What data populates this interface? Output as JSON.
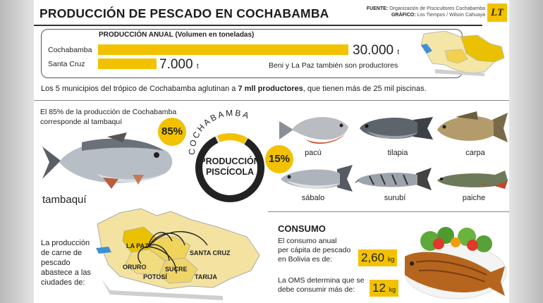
{
  "header": {
    "title": "PRODUCCIÓN DE PESCADO EN COCHABAMBA",
    "fuente_label": "FUENTE:",
    "fuente_value": "Organización de Piscicultores Cochabamba",
    "grafico_label": "GRÁFICO:",
    "grafico_value": "Los Tiempos / Wilson Cahuaya",
    "logo_text": "LT"
  },
  "production": {
    "heading": "PRODUCCIÓN ANUAL (Volumen en toneladas)",
    "rows": [
      {
        "label": "Cochabamba",
        "value": "30.000",
        "unit": "t",
        "amount": 30000
      },
      {
        "label": "Santa Cruz",
        "value": "7.000",
        "unit": "t",
        "amount": 7000
      }
    ],
    "note": "Beni y La Paz también son productores"
  },
  "sentence": {
    "before": "Los 5 municipios del trópico de Cochabamba aglutinan a ",
    "bold": "7 mll productores",
    "after": ", que tienen más de 25 mil piscinas."
  },
  "tambaqui": {
    "line1": "El 85% de la producción  de Cochabamba",
    "line2": "corresponde al tambaquí",
    "name": "tambaquí"
  },
  "ring": {
    "arc_text": "COCHABAMBA",
    "label_line1": "PRODUCCIÓN",
    "label_line2": "PISCÍCOLA",
    "pct_main": "85%",
    "pct_other": "15%",
    "share_main": 0.85,
    "share_other": 0.15
  },
  "fish": [
    {
      "name": "pacú"
    },
    {
      "name": "tilapia"
    },
    {
      "name": "carpa"
    },
    {
      "name": "sábalo"
    },
    {
      "name": "surubí"
    },
    {
      "name": "paiche"
    }
  ],
  "distribution": {
    "text_lines": [
      "La producción",
      "de carne de",
      "pescado",
      "abastece a las",
      "ciudades de:"
    ],
    "cities": {
      "la_paz": "LA PAZ",
      "oruro": "ORURO",
      "potosi": "POTOSÍ",
      "sucre": "SUCRE",
      "santa_cruz": "SANTA CRUZ",
      "tarija": "TARIJA"
    }
  },
  "consumo": {
    "title": "CONSUMO",
    "line1": "El consumo anual",
    "line2": "per cápita de pescado",
    "line3": "en Bolivia es de:",
    "value1": "2,60",
    "unit1": "kg",
    "oms_line1": "La OMS determina que se",
    "oms_line2": "debe consumir más de:",
    "value2": "12",
    "unit2": "kg"
  },
  "colors": {
    "accent": "#f2c200",
    "dark": "#222222",
    "map_fill": "#f2d98a",
    "map_highlight": "#e6b800"
  }
}
